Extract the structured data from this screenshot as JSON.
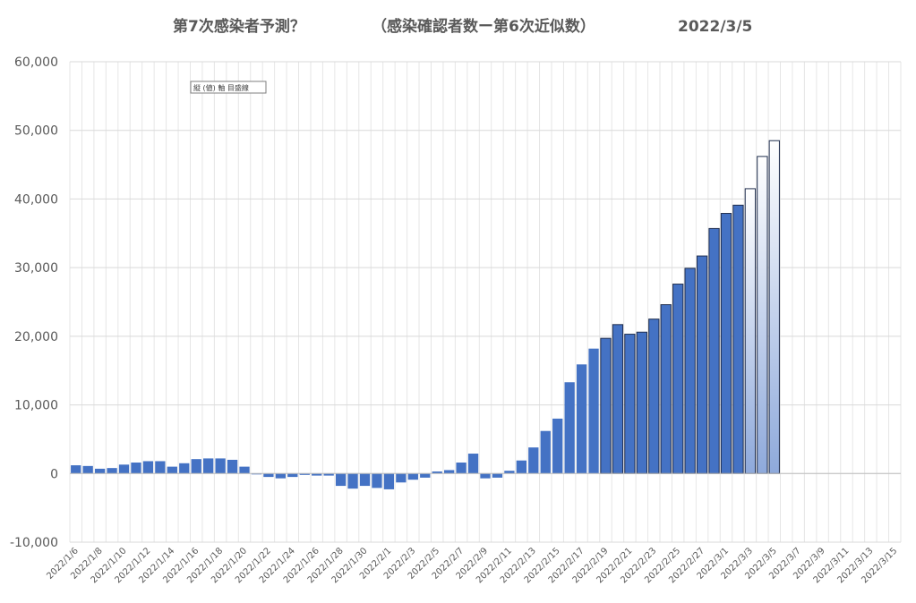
{
  "title": {
    "part1": "第7次感染者予測？",
    "part2": "（感染確認者数ー第6次近似数）",
    "date": "2022/3/5"
  },
  "note": "縦 (値) 軸 目盛線",
  "colors": {
    "bar": "#4472c4",
    "bar_outline": "#1f2d4d",
    "forecast_top": "#ffffff",
    "forecast_bottom": "#8ea9db",
    "grid": "#d9d9d9",
    "text": "#595959"
  },
  "chart_data": {
    "type": "bar",
    "ylim": [
      -10000,
      60000
    ],
    "yticks": [
      -10000,
      0,
      10000,
      20000,
      30000,
      40000,
      50000,
      60000
    ],
    "ytick_labels": [
      "-10,000",
      "0",
      "10,000",
      "20,000",
      "30,000",
      "40,000",
      "50,000",
      "60,000"
    ],
    "categories": [
      "2022/1/6",
      "2022/1/7",
      "2022/1/8",
      "2022/1/9",
      "2022/1/10",
      "2022/1/11",
      "2022/1/12",
      "2022/1/13",
      "2022/1/14",
      "2022/1/15",
      "2022/1/16",
      "2022/1/17",
      "2022/1/18",
      "2022/1/19",
      "2022/1/20",
      "2022/1/21",
      "2022/1/22",
      "2022/1/23",
      "2022/1/24",
      "2022/1/25",
      "2022/1/26",
      "2022/1/27",
      "2022/1/28",
      "2022/1/29",
      "2022/1/30",
      "2022/1/31",
      "2022/2/1",
      "2022/2/2",
      "2022/2/3",
      "2022/2/4",
      "2022/2/5",
      "2022/2/6",
      "2022/2/7",
      "2022/2/8",
      "2022/2/9",
      "2022/2/10",
      "2022/2/11",
      "2022/2/12",
      "2022/2/13",
      "2022/2/14",
      "2022/2/15",
      "2022/2/16",
      "2022/2/17",
      "2022/2/18",
      "2022/2/19",
      "2022/2/20",
      "2022/2/21",
      "2022/2/22",
      "2022/2/23",
      "2022/2/24",
      "2022/2/25",
      "2022/2/26",
      "2022/2/27",
      "2022/2/28",
      "2022/3/1",
      "2022/3/2",
      "2022/3/3",
      "2022/3/4",
      "2022/3/5",
      "2022/3/6",
      "2022/3/7",
      "2022/3/8",
      "2022/3/9",
      "2022/3/10",
      "2022/3/11",
      "2022/3/12",
      "2022/3/13",
      "2022/3/14",
      "2022/3/15"
    ],
    "xtick_labels": [
      "2022/1/6",
      "2022/1/8",
      "2022/1/10",
      "2022/1/12",
      "2022/1/14",
      "2022/1/16",
      "2022/1/18",
      "2022/1/20",
      "2022/1/22",
      "2022/1/24",
      "2022/1/26",
      "2022/1/28",
      "2022/1/30",
      "2022/2/1",
      "2022/2/3",
      "2022/2/5",
      "2022/2/7",
      "2022/2/9",
      "2022/2/11",
      "2022/2/13",
      "2022/2/15",
      "2022/2/17",
      "2022/2/19",
      "2022/2/21",
      "2022/2/23",
      "2022/2/25",
      "2022/2/27",
      "2022/3/1",
      "2022/3/3",
      "2022/3/5",
      "2022/3/7",
      "2022/3/9",
      "2022/3/11",
      "2022/3/13",
      "2022/3/15"
    ],
    "series": [
      {
        "values": [
          1200,
          1100,
          700,
          800,
          1300,
          1600,
          1800,
          1800,
          1000,
          1500,
          2100,
          2200,
          2200,
          2000,
          1000,
          -100,
          -500,
          -700,
          -500,
          -200,
          -300,
          -300,
          -1800,
          -2200,
          -1800,
          -2100,
          -2300,
          -1300,
          -900,
          -600,
          300,
          500,
          1600,
          2900,
          -700,
          -600,
          400,
          1900,
          3800,
          6200,
          8000,
          13300,
          15900,
          18200,
          19700,
          21700,
          20300,
          20600,
          22500,
          24600,
          27600,
          29900,
          31700,
          35700,
          37900,
          39100,
          41500,
          46200,
          48500,
          null,
          null,
          null,
          null,
          null,
          null,
          null,
          null,
          null,
          null
        ],
        "outlined_from": "2022/2/19",
        "forecast_from": "2022/3/3"
      }
    ],
    "grid": true,
    "legend": "none"
  }
}
